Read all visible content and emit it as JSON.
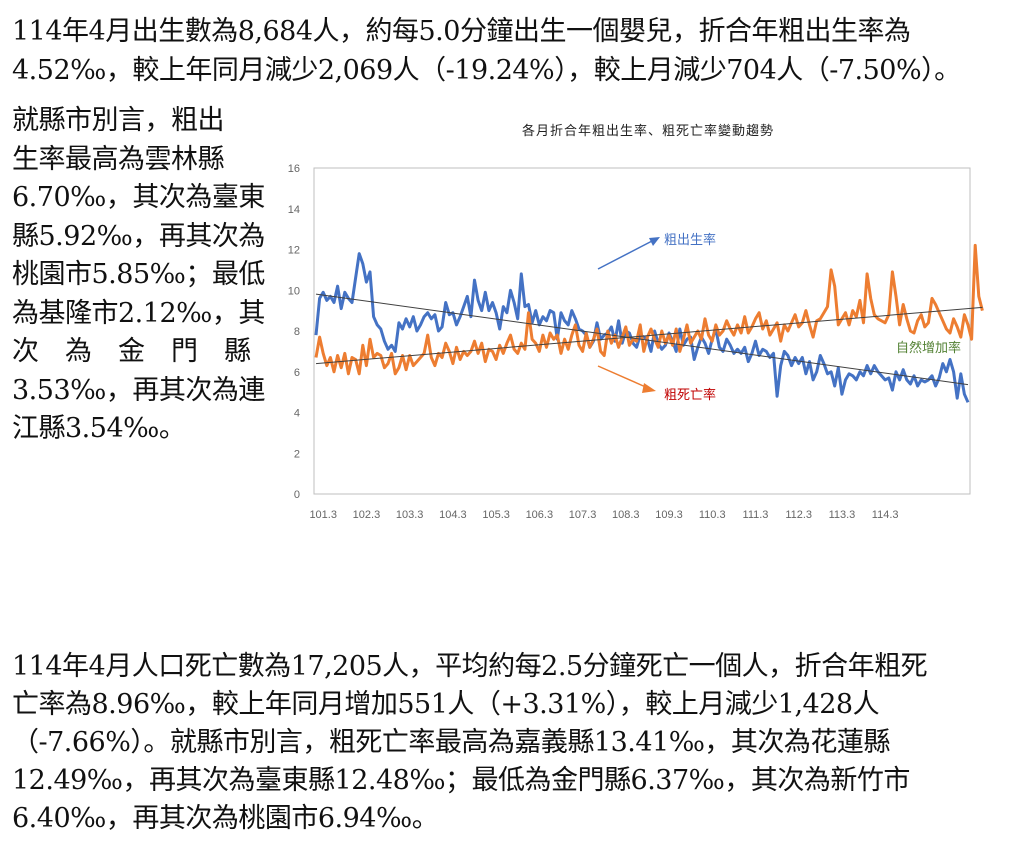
{
  "paragraph_top": {
    "lines": [
      "114年4月出生數為8,684人，約每5.0分鐘出生一個嬰兒，折合年粗出生率為",
      "4.52‰，較上年同月減少2,069人（-19.24%），較上月減少704人（-7.50%）。"
    ]
  },
  "side_text": {
    "lines": [
      "就縣市別言，粗出",
      "生率最高為雲林縣",
      "6.70‰，其次為臺東",
      "縣5.92‰，再其次為",
      "桃園市5.85‰；最低",
      "為基隆市2.12‰，其",
      "次　為　金　門　縣",
      "3.53‰，再其次為連",
      "江縣3.54‰。"
    ]
  },
  "paragraph_bottom": {
    "lines": [
      "114年4月人口死亡數為17,205人，平均約每2.5分鐘死亡一個人，折合年粗死",
      "亡率為8.96‰，較上年同月增加551人（+3.31%），較上月減少1,428人",
      "（-7.66%）。就縣市別言，粗死亡率最高為嘉義縣13.41‰，其次為花蓮縣",
      "12.49‰，再其次為臺東縣12.48‰；最低為金門縣6.37‰，其次為新竹市",
      "6.40‰，再其次為桃園市6.94‰。"
    ]
  },
  "chart_data": {
    "type": "line",
    "title": "各月折合年粗出生率、粗死亡率變動趨勢",
    "xlabel": "",
    "ylabel": "",
    "ylim": [
      0,
      16
    ],
    "yticks": [
      0,
      2,
      4,
      6,
      8,
      10,
      12,
      14,
      16
    ],
    "xticks": [
      "101.3",
      "102.3",
      "103.3",
      "104.3",
      "105.3",
      "106.3",
      "107.3",
      "108.3",
      "109.3",
      "110.3",
      "111.3",
      "112.3",
      "113.3",
      "114.3"
    ],
    "x_range": [
      "101.1",
      "114.4"
    ],
    "grid": false,
    "annotations": {
      "birth_label": "粗出生率",
      "death_label": "粗死亡率",
      "natural_label": "自然增加率"
    },
    "colors": {
      "birth": "#4472c4",
      "death": "#ed7d31",
      "trend": "#404040",
      "birth_text": "#4472c4",
      "death_text": "#c00000",
      "natural_text": "#548235",
      "axis": "#bfbfbf"
    },
    "series": [
      {
        "name": "粗出生率",
        "key": "birth",
        "values": [
          7.8,
          9.6,
          9.9,
          9.5,
          9.7,
          9.4,
          10.2,
          9.1,
          9.9,
          9.6,
          9.4,
          10.6,
          11.8,
          11.3,
          10.4,
          10.9,
          8.7,
          8.3,
          8.1,
          7.5,
          7.1,
          7.3,
          7.0,
          8.4,
          8.1,
          8.6,
          8.2,
          8.7,
          8.0,
          8.3,
          8.7,
          8.9,
          8.6,
          8.8,
          8.0,
          8.2,
          9.4,
          8.8,
          8.9,
          8.3,
          8.7,
          9.2,
          9.7,
          8.7,
          10.5,
          9.5,
          9.0,
          9.9,
          9.0,
          9.4,
          8.9,
          8.1,
          9.2,
          8.9,
          10.0,
          9.4,
          8.6,
          10.8,
          9.2,
          9.3,
          8.4,
          9.0,
          8.3,
          8.7,
          8.5,
          9.0,
          8.9,
          7.6,
          8.9,
          8.5,
          8.3,
          9.0,
          8.6,
          8.1,
          8.0,
          7.8,
          7.2,
          7.5,
          8.4,
          7.6,
          7.8,
          7.9,
          8.2,
          7.5,
          8.5,
          7.4,
          8.0,
          7.9,
          7.4,
          7.2,
          7.8,
          7.7,
          7.6,
          7.0,
          8.0,
          7.4,
          7.1,
          7.3,
          7.9,
          7.5,
          7.0,
          8.1,
          7.3,
          7.6,
          7.7,
          6.6,
          7.2,
          7.7,
          7.4,
          6.9,
          7.6,
          8.1,
          7.2,
          7.0,
          7.6,
          7.3,
          6.9,
          7.1,
          6.9,
          7.2,
          6.5,
          6.9,
          7.5,
          6.8,
          7.1,
          7.0,
          6.7,
          6.9,
          4.8,
          6.3,
          7.0,
          6.8,
          6.3,
          6.7,
          6.4,
          6.7,
          5.9,
          6.5,
          5.6,
          6.0,
          6.8,
          6.4,
          5.9,
          6.0,
          5.3,
          6.2,
          4.9,
          5.6,
          5.9,
          5.8,
          5.6,
          6.0,
          5.8,
          6.3,
          5.9,
          6.3,
          6.0,
          5.8,
          5.6,
          5.7,
          5.1,
          6.0,
          5.6,
          6.1,
          5.6,
          5.4,
          5.8,
          5.3,
          5.6,
          5.5,
          5.6,
          5.8,
          5.3,
          5.7,
          6.4,
          6.0,
          6.6,
          6.0,
          4.7,
          5.9,
          4.9,
          4.5
        ]
      },
      {
        "name": "粗死亡率",
        "key": "death",
        "values": [
          6.7,
          7.7,
          6.9,
          6.3,
          6.7,
          6.0,
          6.8,
          6.2,
          6.9,
          5.9,
          6.7,
          6.6,
          5.9,
          7.3,
          6.3,
          7.6,
          6.7,
          6.9,
          6.8,
          6.2,
          6.4,
          6.9,
          5.9,
          6.2,
          6.8,
          6.1,
          6.8,
          6.3,
          6.5,
          6.7,
          6.9,
          7.8,
          6.7,
          6.3,
          6.9,
          6.7,
          7.4,
          7.0,
          6.4,
          7.2,
          6.6,
          7.0,
          6.8,
          7.0,
          7.5,
          6.9,
          7.4,
          6.5,
          7.1,
          7.0,
          6.6,
          7.3,
          6.9,
          7.4,
          7.8,
          7.1,
          6.9,
          7.4,
          7.1,
          8.9,
          7.6,
          7.4,
          7.0,
          7.8,
          7.2,
          7.9,
          7.6,
          7.8,
          6.9,
          7.6,
          7.1,
          7.8,
          8.3,
          7.3,
          7.0,
          7.9,
          7.2,
          7.6,
          8.1,
          7.0,
          6.8,
          8.0,
          7.4,
          7.8,
          7.2,
          7.7,
          8.2,
          7.3,
          7.6,
          7.5,
          8.3,
          7.0,
          7.7,
          8.1,
          7.6,
          7.2,
          8.0,
          7.4,
          7.8,
          7.3,
          8.1,
          7.0,
          7.6,
          8.3,
          7.4,
          7.7,
          8.0,
          7.6,
          8.6,
          7.8,
          7.5,
          8.3,
          7.8,
          8.0,
          8.5,
          8.1,
          7.8,
          8.3,
          7.9,
          8.7,
          7.9,
          8.2,
          8.6,
          8.9,
          8.1,
          8.5,
          7.8,
          8.1,
          8.4,
          7.5,
          8.3,
          8.0,
          8.4,
          8.8,
          8.2,
          8.4,
          9.0,
          8.3,
          7.7,
          8.5,
          8.6,
          8.9,
          9.2,
          11.0,
          10.2,
          8.3,
          8.6,
          8.9,
          8.3,
          9.0,
          8.7,
          9.5,
          8.4,
          10.8,
          9.6,
          8.8,
          8.6,
          8.5,
          8.4,
          8.8,
          10.9,
          9.7,
          8.3,
          9.3,
          8.6,
          8.0,
          7.9,
          8.5,
          8.8,
          8.2,
          8.4,
          9.6,
          9.3,
          8.9,
          8.5,
          8.1,
          7.9,
          8.6,
          8.2,
          7.7,
          8.8,
          8.3,
          7.6,
          12.2,
          9.7,
          9.0
        ]
      }
    ]
  }
}
